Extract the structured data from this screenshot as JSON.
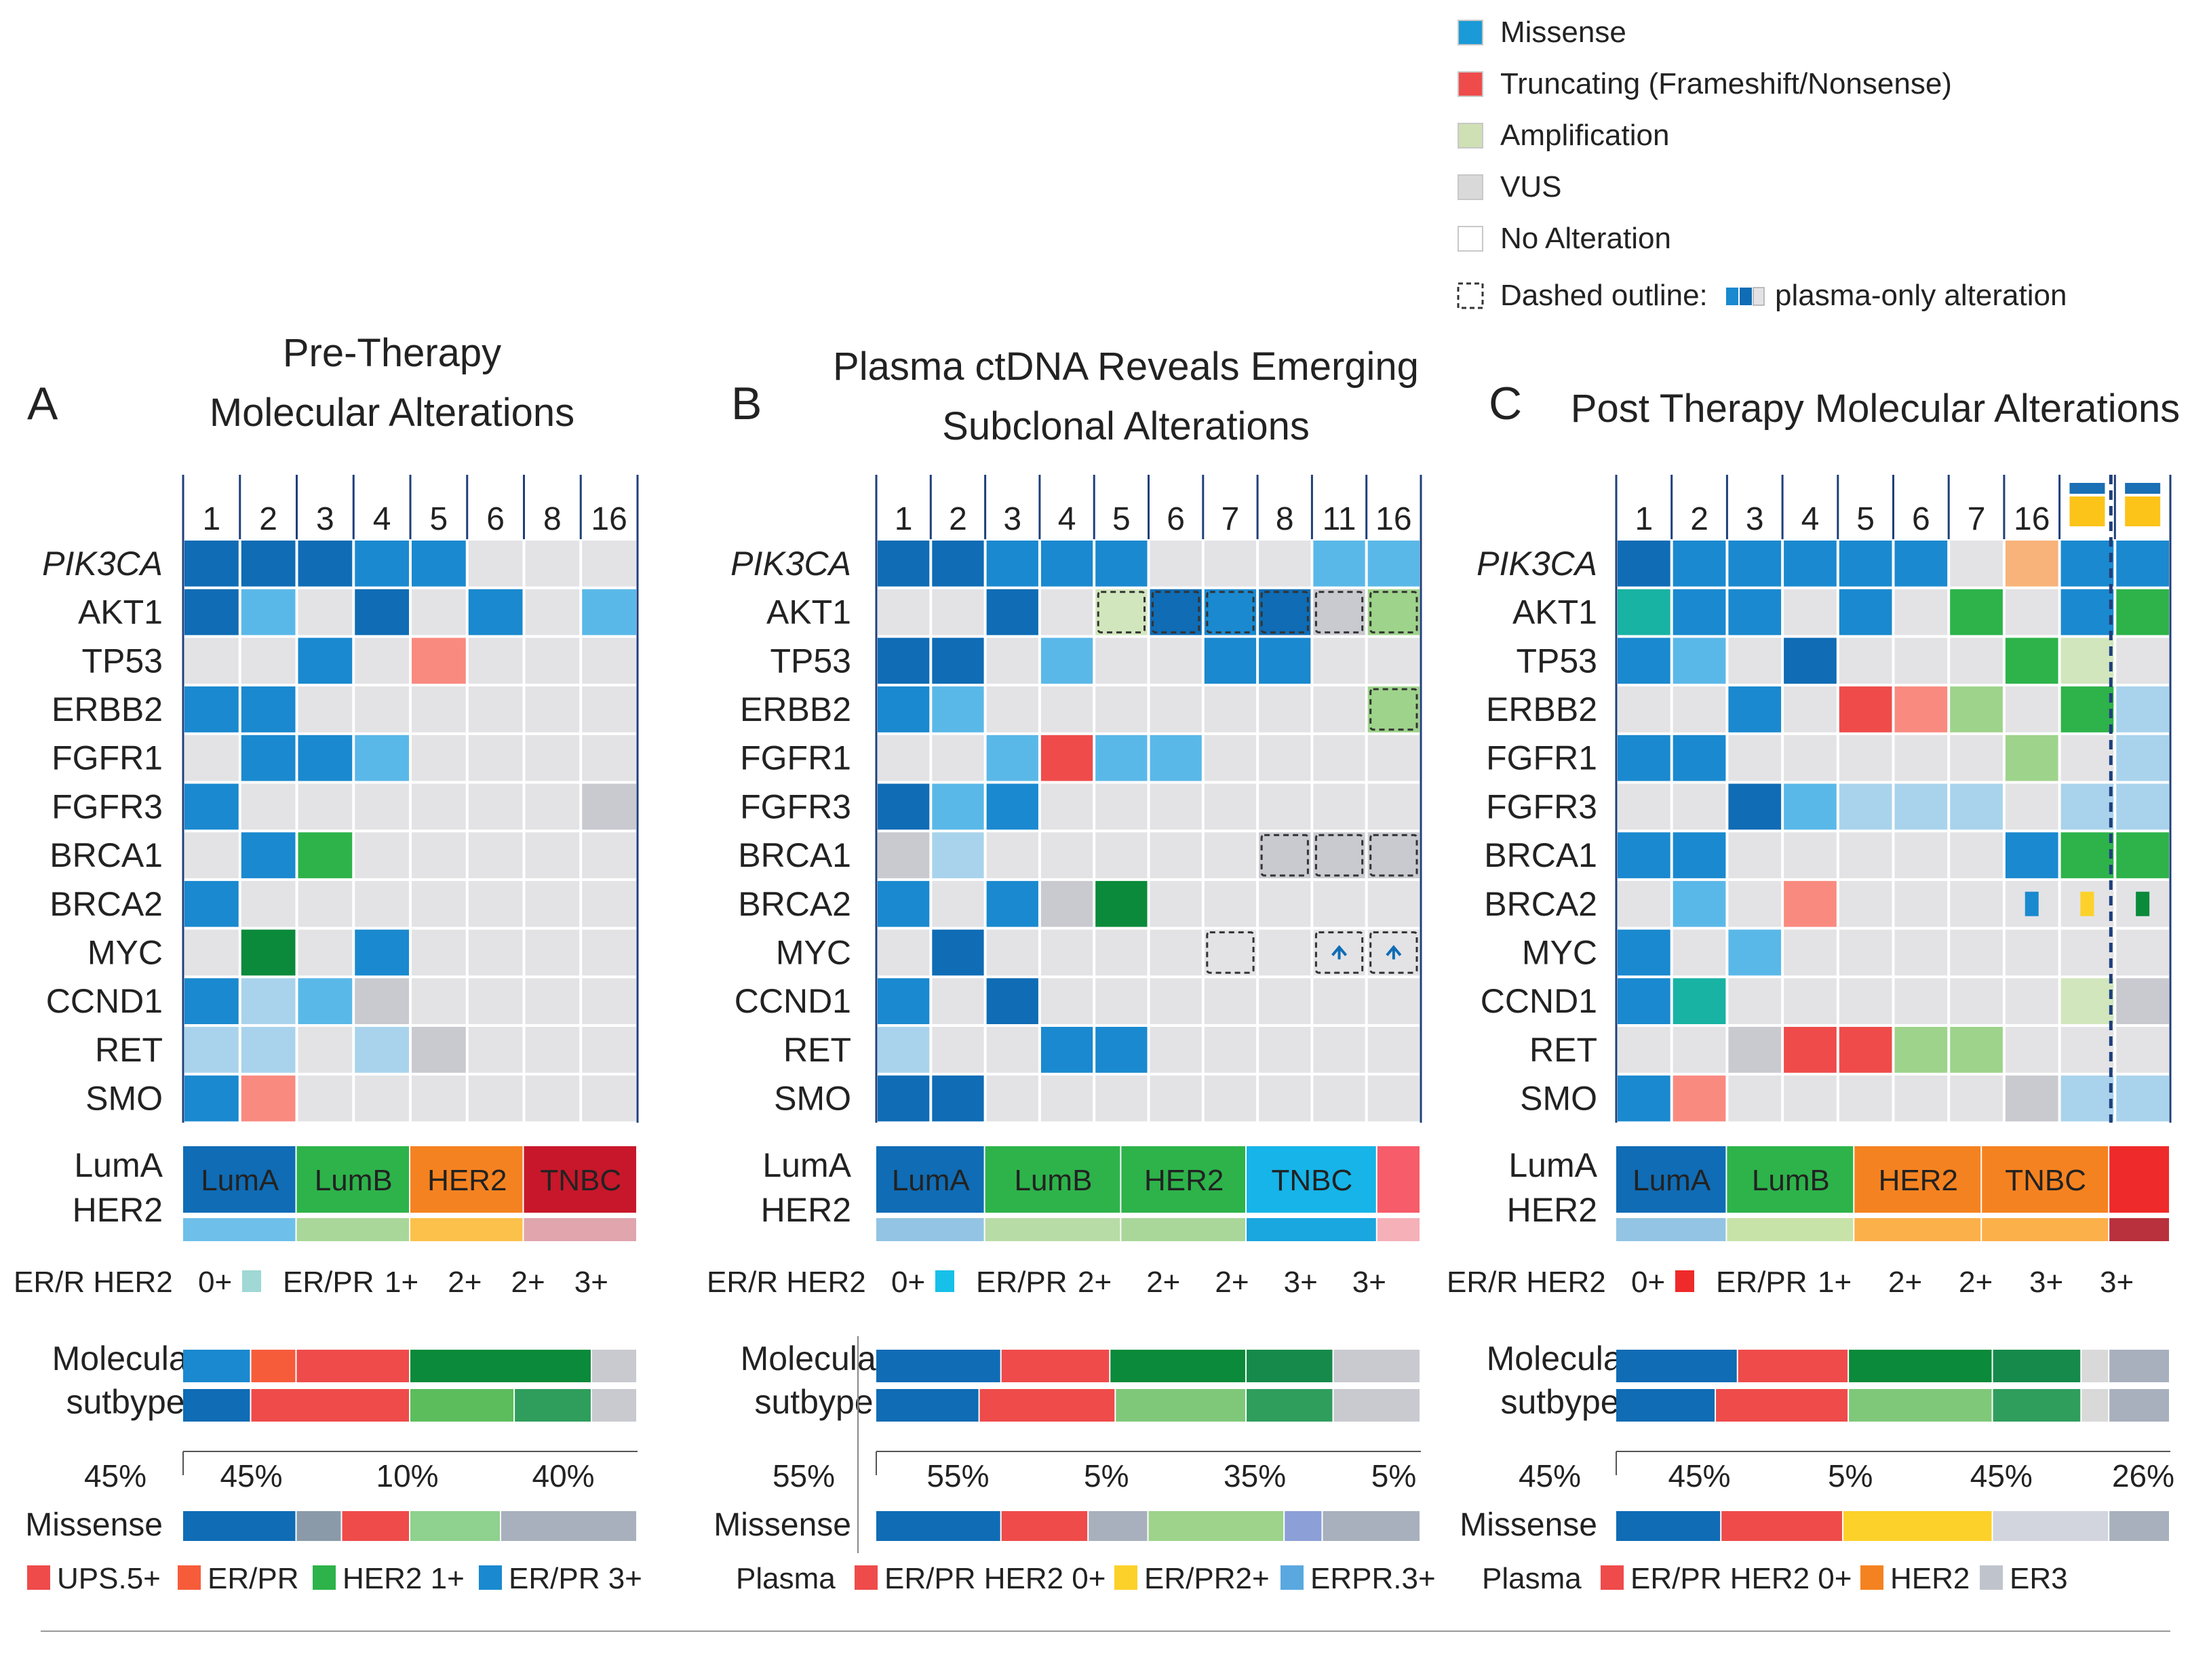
{
  "legend": {
    "items": [
      {
        "label": "Missense",
        "color": "#1a9ad6"
      },
      {
        "label": "Truncating (Frameshift/Nonsense)",
        "color": "#ef4b4b"
      },
      {
        "label": "Amplification",
        "color": "#cfe0b4"
      },
      {
        "label": "VUS",
        "color": "#d9d9d9"
      },
      {
        "label": "No Alteration",
        "color": "#ffffff"
      }
    ],
    "dashed_label": "Dashed outline:",
    "dashed_suffix": "plasma-only alteration"
  },
  "colors": {
    "blue_dark": "#0f6cb5",
    "blue": "#1a89cf",
    "blue_light": "#5ab8e8",
    "blue_pale": "#a9d3ec",
    "red": "#ef4b4b",
    "salmon": "#f98a80",
    "orange": "#f58220",
    "yellow": "#fcd12a",
    "green_dark": "#0a8a3a",
    "green": "#2db34a",
    "green_light": "#9ed38b",
    "green_pale": "#d1e6bd",
    "grey": "#e3e3e6",
    "grey_mid": "#c9c9d0",
    "teal": "#18b3a3",
    "peach": "#f8b37a",
    "tnbc_red": "#c8172a"
  },
  "genes": [
    "PIK3CA",
    "AKT1",
    "TP53",
    "ERBB2",
    "FGFR1",
    "FGFR3",
    "BRCA1",
    "BRCA2",
    "MYC",
    "CCND1",
    "RET",
    "SMO"
  ],
  "panels": [
    {
      "letter": "A",
      "title_lines": [
        "Pre-Therapy",
        "Molecular Alterations"
      ],
      "columns": [
        "1",
        "2",
        "3",
        "4",
        "5",
        "6",
        "8",
        "16"
      ],
      "cells": [
        [
          "blue_dark",
          "blue_dark",
          "blue_dark",
          "blue",
          "blue",
          "grey",
          "grey",
          "grey"
        ],
        [
          "blue_dark",
          "blue_light",
          "grey",
          "blue_dark",
          "grey",
          "blue",
          "grey",
          "blue_light"
        ],
        [
          "grey",
          "grey",
          "blue",
          "grey",
          "salmon",
          "grey",
          "grey",
          "grey"
        ],
        [
          "blue",
          "blue",
          "grey",
          "grey",
          "grey",
          "grey",
          "grey",
          "grey"
        ],
        [
          "grey",
          "blue",
          "blue",
          "blue_light",
          "grey",
          "grey",
          "grey",
          "grey"
        ],
        [
          "blue",
          "grey",
          "grey",
          "grey",
          "grey",
          "grey",
          "grey",
          "grey_mid"
        ],
        [
          "grey",
          "blue",
          "green",
          "grey",
          "grey",
          "grey",
          "grey",
          "grey"
        ],
        [
          "blue",
          "grey",
          "grey",
          "grey",
          "grey",
          "grey",
          "grey",
          "grey"
        ],
        [
          "grey",
          "green_dark",
          "grey",
          "blue",
          "grey",
          "grey",
          "grey",
          "grey"
        ],
        [
          "blue",
          "blue_pale",
          "blue_light",
          "grey_mid",
          "grey",
          "grey",
          "grey",
          "grey"
        ],
        [
          "blue_pale",
          "blue_pale",
          "grey",
          "blue_pale",
          "grey_mid",
          "grey",
          "grey",
          "grey"
        ],
        [
          "blue",
          "salmon",
          "grey",
          "grey",
          "grey",
          "grey",
          "grey",
          "grey"
        ]
      ],
      "dashed": [],
      "subtype_left": [
        "LumA",
        "HER2"
      ],
      "subtypes": [
        {
          "label": "LumA",
          "span": 2,
          "color": "#0f6cb5",
          "sub": "#6ec0ea"
        },
        {
          "label": "LumB",
          "span": 2,
          "color": "#2db34a",
          "sub": "#a9d79a"
        },
        {
          "label": "HER2",
          "span": 2,
          "color": "#f58220",
          "sub": "#fcc14a"
        },
        {
          "label": "TNBC",
          "span": 2,
          "color": "#c8172a",
          "sub": "#e0a5ad"
        }
      ],
      "er_labels": [
        "ER/R HER2",
        "0+",
        "ER/PR",
        "1+",
        "2+",
        "2+",
        "3+"
      ],
      "er_square": "#9fd8d4",
      "mol_label": [
        "Molecular",
        "sutbype"
      ],
      "mol_rows": [
        [
          {
            "c": "#1a89cf",
            "w": 0.15
          },
          {
            "c": "#f75c3a",
            "w": 0.1
          },
          {
            "c": "#ef4b4b",
            "w": 0.25
          },
          {
            "c": "#0a8a3a",
            "w": 0.4
          },
          {
            "c": "#c9c9d0",
            "w": 0.1
          }
        ],
        [
          {
            "c": "#0f6cb5",
            "w": 0.15
          },
          {
            "c": "#ef4b4b",
            "w": 0.35
          },
          {
            "c": "#5cbd5c",
            "w": 0.23
          },
          {
            "c": "#2f9e5c",
            "w": 0.17
          },
          {
            "c": "#c9c9d0",
            "w": 0.1
          }
        ]
      ],
      "pct_left": "45%",
      "pcts": [
        "45%",
        "10%",
        "40%"
      ],
      "missense_label": "Missense",
      "missense_bar": [
        {
          "c": "#0f6cb5",
          "w": 0.25
        },
        {
          "c": "#8a9aa8",
          "w": 0.1
        },
        {
          "c": "#ef4b4b",
          "w": 0.15
        },
        {
          "c": "#8fd18f",
          "w": 0.2
        },
        {
          "c": "#a8b0bd",
          "w": 0.3
        }
      ],
      "bottom_legend": [
        {
          "label": "UPS.5+",
          "color": "#ef4b4b"
        },
        {
          "label": "ER/PR",
          "color": "#f75c3a"
        },
        {
          "label": "HER2 1+",
          "color": "#2db34a"
        },
        {
          "label": "ER/PR 3+",
          "color": "#1a89cf"
        }
      ]
    },
    {
      "letter": "B",
      "title_lines": [
        "Plasma ctDNA Reveals Emerging",
        "Subclonal Alterations"
      ],
      "columns": [
        "1",
        "2",
        "3",
        "4",
        "5",
        "6",
        "7",
        "8",
        "11",
        "16"
      ],
      "cells": [
        [
          "blue_dark",
          "blue_dark",
          "blue",
          "blue",
          "blue",
          "grey",
          "grey",
          "grey",
          "blue_light",
          "blue_light"
        ],
        [
          "grey",
          "grey",
          "blue_dark",
          "grey",
          "green_pale",
          "blue_dark",
          "blue",
          "blue_dark",
          "grey_mid",
          "green_light"
        ],
        [
          "blue_dark",
          "blue_dark",
          "grey",
          "blue_light",
          "grey",
          "grey",
          "blue",
          "blue",
          "grey",
          "grey"
        ],
        [
          "blue",
          "blue_light",
          "grey",
          "grey",
          "grey",
          "grey",
          "grey",
          "grey",
          "grey",
          "green_light"
        ],
        [
          "grey",
          "grey",
          "blue_light",
          "red",
          "blue_light",
          "blue_light",
          "grey",
          "grey",
          "grey",
          "grey"
        ],
        [
          "blue_dark",
          "blue_light",
          "blue",
          "grey",
          "grey",
          "grey",
          "grey",
          "grey",
          "grey",
          "grey"
        ],
        [
          "grey_mid",
          "blue_pale",
          "grey",
          "grey",
          "grey",
          "grey",
          "grey",
          "grey_mid",
          "grey_mid",
          "grey_mid"
        ],
        [
          "blue",
          "grey",
          "blue",
          "grey_mid",
          "green_dark",
          "grey",
          "grey",
          "grey",
          "grey",
          "grey"
        ],
        [
          "grey",
          "blue_dark",
          "grey",
          "grey",
          "grey",
          "grey",
          "grey",
          "grey",
          "grey",
          "grey"
        ],
        [
          "blue",
          "grey",
          "blue_dark",
          "grey",
          "grey",
          "grey",
          "grey",
          "grey",
          "grey",
          "grey"
        ],
        [
          "blue_pale",
          "grey",
          "grey",
          "blue",
          "blue",
          "grey",
          "grey",
          "grey",
          "grey",
          "grey"
        ],
        [
          "blue_dark",
          "blue_dark",
          "grey",
          "grey",
          "grey",
          "grey",
          "grey",
          "grey",
          "grey",
          "grey"
        ]
      ],
      "dashed": [
        [
          1,
          4
        ],
        [
          1,
          5
        ],
        [
          1,
          6
        ],
        [
          1,
          7
        ],
        [
          1,
          8
        ],
        [
          1,
          9
        ],
        [
          3,
          9
        ],
        [
          6,
          7
        ],
        [
          6,
          8
        ],
        [
          6,
          9
        ],
        [
          8,
          6
        ],
        [
          8,
          8
        ],
        [
          8,
          9
        ]
      ],
      "subtype_left": [
        "LumA",
        "HER2"
      ],
      "subtypes": [
        {
          "label": "LumA",
          "span": 2,
          "color": "#0f6cb5",
          "sub": "#93c4e4"
        },
        {
          "label": "LumB",
          "span": 2.5,
          "color": "#2db34a",
          "sub": "#b8dca6"
        },
        {
          "label": "HER2",
          "span": 2.3,
          "color": "#2db34a",
          "sub": "#a9d79a"
        },
        {
          "label": "TNBC",
          "span": 2.4,
          "color": "#16b4e8",
          "sub": "#1aa6df"
        },
        {
          "label": "",
          "span": 0.8,
          "color": "#f75c6a",
          "sub": "#f5b0b8"
        }
      ],
      "er_labels": [
        "ER/R HER2",
        "0+",
        "ER/PR",
        "2+",
        "2+",
        "2+",
        "3+",
        "3+"
      ],
      "er_square": "#16c0e8",
      "mol_label": [
        "Molecular",
        "sutbype"
      ],
      "mol_rows": [
        [
          {
            "c": "#0f6cb5",
            "w": 0.23
          },
          {
            "c": "#ef4b4b",
            "w": 0.2
          },
          {
            "c": "#0a8a3a",
            "w": 0.25
          },
          {
            "c": "#168a4a",
            "w": 0.16
          },
          {
            "c": "#c9c9d0",
            "w": 0.16
          }
        ],
        [
          {
            "c": "#0f6cb5",
            "w": 0.19
          },
          {
            "c": "#ef4b4b",
            "w": 0.25
          },
          {
            "c": "#7fc87a",
            "w": 0.24
          },
          {
            "c": "#2f9e5c",
            "w": 0.16
          },
          {
            "c": "#c9c9d0",
            "w": 0.16
          }
        ]
      ],
      "pct_left": "55%",
      "pcts": [
        "55%",
        "5%",
        "35%",
        "5%"
      ],
      "missense_label": "Missense",
      "missense_bar": [
        {
          "c": "#0f6cb5",
          "w": 0.23
        },
        {
          "c": "#ef4b4b",
          "w": 0.16
        },
        {
          "c": "#a8b0bd",
          "w": 0.11
        },
        {
          "c": "#9ed38b",
          "w": 0.25
        },
        {
          "c": "#8c9fd6",
          "w": 0.07
        },
        {
          "c": "#a8b0bd",
          "w": 0.18
        }
      ],
      "bottom_legend_prefix": "Plasma",
      "bottom_legend": [
        {
          "label": "ER/PR HER2 0+",
          "color": "#ef4b4b"
        },
        {
          "label": "ER/PR2+",
          "color": "#fcd12a"
        },
        {
          "label": "ERPR.3+",
          "color": "#5aa8e0"
        }
      ]
    },
    {
      "letter": "C",
      "title_lines": [
        "Post Therapy Molecular Alterations"
      ],
      "columns": [
        "1",
        "2",
        "3",
        "4",
        "5",
        "6",
        "7",
        "16",
        "",
        ""
      ],
      "cells": [
        [
          "blue_dark",
          "blue",
          "blue",
          "blue",
          "blue",
          "blue",
          "grey",
          "peach",
          "blue",
          "blue"
        ],
        [
          "teal",
          "blue",
          "blue",
          "grey",
          "blue",
          "grey",
          "green",
          "grey",
          "blue",
          "green"
        ],
        [
          "blue",
          "blue_light",
          "grey",
          "blue_dark",
          "grey",
          "grey",
          "grey",
          "green",
          "green_pale",
          "grey"
        ],
        [
          "grey",
          "grey",
          "blue",
          "grey",
          "red",
          "salmon",
          "green_light",
          "grey",
          "green",
          "blue_pale"
        ],
        [
          "blue",
          "blue",
          "grey",
          "grey",
          "grey",
          "grey",
          "grey",
          "green_light",
          "grey",
          "blue_pale"
        ],
        [
          "grey",
          "grey",
          "blue_dark",
          "blue_light",
          "blue_pale",
          "blue_pale",
          "blue_pale",
          "grey",
          "blue_pale",
          "blue_pale"
        ],
        [
          "blue",
          "blue",
          "grey",
          "grey",
          "grey",
          "grey",
          "grey",
          "blue",
          "green",
          "green"
        ],
        [
          "grey",
          "blue_light",
          "grey",
          "salmon",
          "grey",
          "grey",
          "grey",
          "grey",
          "grey",
          "grey"
        ],
        [
          "blue",
          "grey",
          "blue_light",
          "grey",
          "grey",
          "grey",
          "grey",
          "grey",
          "grey",
          "grey"
        ],
        [
          "blue",
          "teal",
          "grey",
          "grey",
          "grey",
          "grey",
          "grey",
          "grey",
          "green_pale",
          "grey_mid"
        ],
        [
          "grey",
          "grey",
          "grey_mid",
          "red",
          "red",
          "green_light",
          "green_light",
          "grey",
          "grey",
          "grey"
        ],
        [
          "blue",
          "salmon",
          "grey",
          "grey",
          "grey",
          "grey",
          "grey",
          "grey_mid",
          "blue_pale",
          "blue_pale"
        ]
      ],
      "dashed": [],
      "small_marks": [
        {
          "row": 7,
          "col": 7,
          "color": "#1a89cf"
        },
        {
          "row": 7,
          "col": 8,
          "color": "#fcd12a"
        },
        {
          "row": 7,
          "col": 9,
          "color": "#0a8a3a"
        }
      ],
      "subtype_left": [
        "LumA",
        "HER2"
      ],
      "subtypes": [
        {
          "label": "LumA",
          "span": 2,
          "color": "#0f6cb5",
          "sub": "#93c4e4"
        },
        {
          "label": "LumB",
          "span": 2.3,
          "color": "#2db34a",
          "sub": "#c8e3a8"
        },
        {
          "label": "HER2",
          "span": 2.3,
          "color": "#f58220",
          "sub": "#fcb04a"
        },
        {
          "label": "TNBC",
          "span": 2.3,
          "color": "#f58220",
          "sub": "#fcb04a"
        },
        {
          "label": "",
          "span": 1.1,
          "color": "#ef2a2a",
          "sub": "#b8313c"
        }
      ],
      "er_labels": [
        "ER/R HER2",
        "0+",
        "ER/PR",
        "1+",
        "2+",
        "2+",
        "3+",
        "3+"
      ],
      "er_square": "#ef2a2a",
      "mol_label": [
        "Molecular",
        "sutbype"
      ],
      "mol_rows": [
        [
          {
            "c": "#0f6cb5",
            "w": 0.22
          },
          {
            "c": "#ef4b4b",
            "w": 0.2
          },
          {
            "c": "#0a8a3a",
            "w": 0.26
          },
          {
            "c": "#168a4a",
            "w": 0.16
          },
          {
            "c": "#d9d9d9",
            "w": 0.05
          },
          {
            "c": "#a8b0bd",
            "w": 0.11
          }
        ],
        [
          {
            "c": "#0f6cb5",
            "w": 0.18
          },
          {
            "c": "#ef4b4b",
            "w": 0.24
          },
          {
            "c": "#7fc87a",
            "w": 0.26
          },
          {
            "c": "#2f9e5c",
            "w": 0.16
          },
          {
            "c": "#d9d9d9",
            "w": 0.05
          },
          {
            "c": "#a8b0bd",
            "w": 0.11
          }
        ]
      ],
      "pct_left": "45%",
      "pcts": [
        "45%",
        "5%",
        "45%",
        "26%"
      ],
      "missense_label": "Missense",
      "missense_bar": [
        {
          "c": "#0f6cb5",
          "w": 0.19
        },
        {
          "c": "#ef4b4b",
          "w": 0.22
        },
        {
          "c": "#fcd12a",
          "w": 0.27
        },
        {
          "c": "#d2d5de",
          "w": 0.21
        },
        {
          "c": "#a8b0bd",
          "w": 0.11
        }
      ],
      "bottom_legend_prefix": "Plasma",
      "bottom_legend": [
        {
          "label": "ER/PR HER2 0+",
          "color": "#ef4b4b"
        },
        {
          "label": "HER2",
          "color": "#f58220"
        },
        {
          "label": "ER3",
          "color": "#bfc4cc"
        }
      ]
    }
  ]
}
